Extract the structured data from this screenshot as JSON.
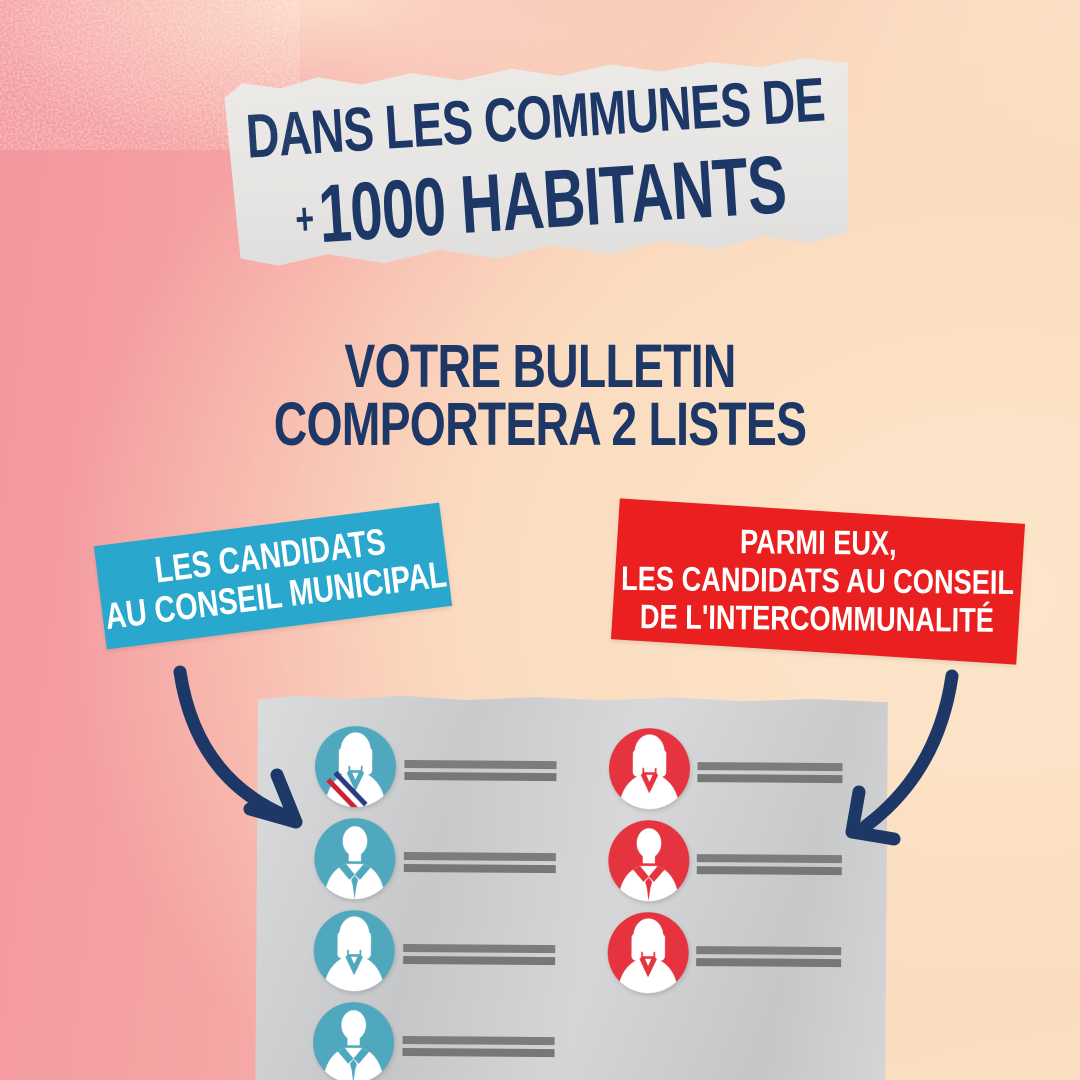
{
  "poster": {
    "banner": {
      "line1": "DANS LES COMMUNES DE",
      "line2_plus": "+",
      "line2": "1000 HABITANTS"
    },
    "subtitle": {
      "line1": "VOTRE BULLETIN",
      "line2": "COMPORTERA 2 LISTES"
    },
    "labels": {
      "municipal": {
        "lines": [
          "LES CANDIDATS",
          "AU CONSEIL MUNICIPAL"
        ],
        "bg": "#29a7cd"
      },
      "intercommunal": {
        "lines": [
          "PARMI EUX,",
          "LES CANDIDATS AU CONSEIL",
          "DE L'INTERCOMMUNALITÉ"
        ],
        "bg": "#e9201f"
      }
    },
    "ballot": {
      "left_list": {
        "name": "municipal-candidates-list",
        "color": "#4fa8bd",
        "rows": [
          {
            "avatar": "woman-mayor-sash"
          },
          {
            "avatar": "man"
          },
          {
            "avatar": "woman"
          },
          {
            "avatar": "man"
          }
        ]
      },
      "right_list": {
        "name": "intercommunal-candidates-list",
        "color": "#e5333f",
        "rows": [
          {
            "avatar": "woman"
          },
          {
            "avatar": "man"
          },
          {
            "avatar": "woman"
          }
        ]
      }
    }
  },
  "palette": {
    "navy": "#1d3766",
    "label-blue": "#29a7cd",
    "label-red": "#e9201f",
    "avatar-blue": "#4fa8bd",
    "avatar-red": "#e5333f",
    "ballot-gray": "#d2d3d5",
    "banner-paper": "#e6e5e3",
    "line-gray": "#7a7d7a",
    "bg-pink": "#f4969f",
    "bg-peach": "#fce7cc",
    "sash-navy": "#2a3b85",
    "sash-red": "#ce2033"
  }
}
